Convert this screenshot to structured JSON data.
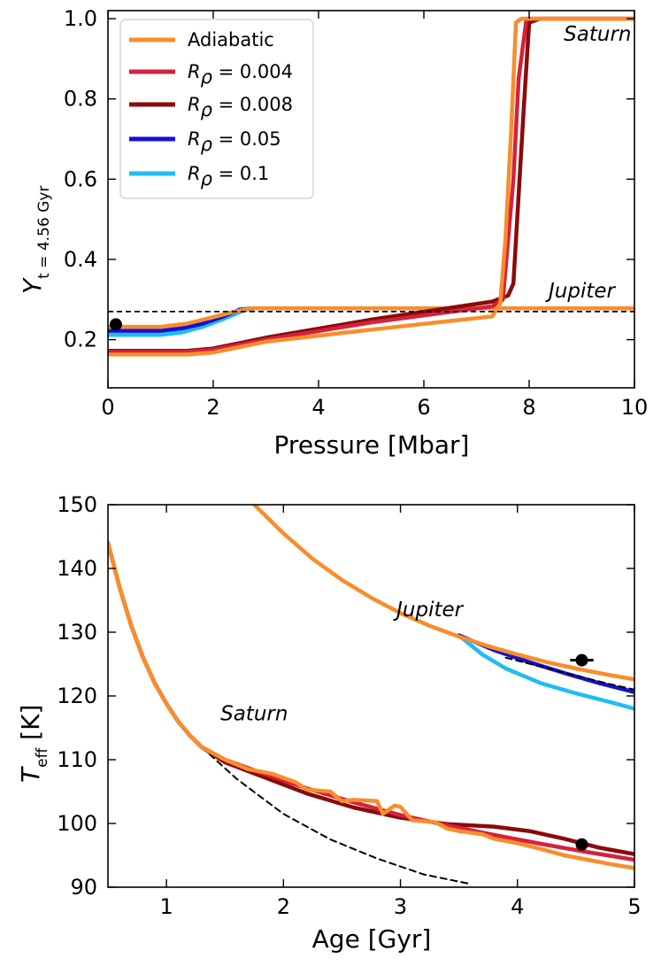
{
  "chart_data": [
    {
      "type": "line",
      "xlabel": "Pressure [Mbar]",
      "ylabel_symbol": "Y",
      "ylabel_subscript": "t = 4.56 Gyr",
      "xlim": [
        0,
        10
      ],
      "ylim": [
        0.08,
        1.02
      ],
      "xticks": [
        0,
        2,
        4,
        6,
        8,
        10
      ],
      "xtick_labels": [
        "0",
        "2",
        "4",
        "6",
        "8",
        "10"
      ],
      "yticks": [
        0.2,
        0.4,
        0.6,
        0.8,
        1.0
      ],
      "ytick_labels": [
        "0.2",
        "0.4",
        "0.6",
        "0.8",
        "1.0"
      ],
      "legend": {
        "position": "top-left",
        "entries": [
          {
            "label": "Adiabatic",
            "color": "#f98d2b",
            "math": false
          },
          {
            "label": "R",
            "sub": "ρ",
            "rest": " = 0.004",
            "color": "#d4213c",
            "math": true
          },
          {
            "label": "R",
            "sub": "ρ",
            "rest": " = 0.008",
            "color": "#8b0a0a",
            "math": true
          },
          {
            "label": "R",
            "sub": "ρ",
            "rest": " = 0.05",
            "color": "#1212d8",
            "math": true
          },
          {
            "label": "R",
            "sub": "ρ",
            "rest": " = 0.1",
            "color": "#1fbdf1",
            "math": true
          }
        ]
      },
      "annotations": [
        {
          "text": "Saturn",
          "x": 9.3,
          "y": 0.945
        },
        {
          "text": "Jupiter",
          "x": 9.0,
          "y": 0.305
        }
      ],
      "reference_line": {
        "y": 0.27,
        "style": "dashed",
        "color": "#000000"
      },
      "observation_points": [
        {
          "x": 0.15,
          "y": 0.238,
          "yerr": 0.005,
          "color": "#000000"
        }
      ],
      "series": [
        {
          "name": "Jupiter R_rho = 0.1",
          "color": "#1fbdf1",
          "x": [
            0,
            1.0,
            1.4,
            1.8,
            2.2,
            2.6,
            2.8,
            10
          ],
          "y": [
            0.212,
            0.212,
            0.218,
            0.232,
            0.252,
            0.274,
            0.278,
            0.278
          ]
        },
        {
          "name": "Jupiter R_rho = 0.05",
          "color": "#1212d8",
          "x": [
            0,
            1.0,
            1.4,
            1.8,
            2.2,
            2.5,
            2.7,
            10
          ],
          "y": [
            0.222,
            0.222,
            0.228,
            0.24,
            0.258,
            0.275,
            0.278,
            0.278
          ]
        },
        {
          "name": "Jupiter Adiabatic",
          "color": "#f98d2b",
          "x": [
            0,
            1.0,
            1.5,
            2.0,
            2.4,
            2.7,
            10
          ],
          "y": [
            0.232,
            0.232,
            0.24,
            0.256,
            0.27,
            0.278,
            0.278
          ]
        },
        {
          "name": "Saturn R_rho = 0.008",
          "color": "#8b0a0a",
          "x": [
            0,
            1.5,
            2.0,
            3.0,
            5.0,
            7.3,
            7.6,
            7.7,
            7.9,
            8.0,
            8.2,
            10
          ],
          "y": [
            0.172,
            0.172,
            0.178,
            0.205,
            0.25,
            0.295,
            0.31,
            0.34,
            0.78,
            0.99,
            1.0,
            1.0
          ]
        },
        {
          "name": "Saturn R_rho = 0.004",
          "color": "#d4213c",
          "x": [
            0,
            1.5,
            2.0,
            3.0,
            5.0,
            7.3,
            7.5,
            7.7,
            7.8,
            7.95,
            10
          ],
          "y": [
            0.17,
            0.17,
            0.175,
            0.2,
            0.243,
            0.283,
            0.3,
            0.6,
            0.85,
            1.0,
            1.0
          ]
        },
        {
          "name": "Saturn Adiabatic",
          "color": "#f98d2b",
          "x": [
            0,
            1.5,
            2.0,
            3.0,
            5.0,
            7.3,
            7.45,
            7.55,
            7.65,
            7.75,
            7.85,
            10
          ],
          "y": [
            0.163,
            0.163,
            0.168,
            0.195,
            0.225,
            0.258,
            0.29,
            0.45,
            0.7,
            0.99,
            1.0,
            1.0
          ]
        }
      ]
    },
    {
      "type": "line",
      "xlabel": "Age [Gyr]",
      "ylabel_symbol": "T",
      "ylabel_subscript": "eff",
      "ylabel_unit": " [K]",
      "xlim": [
        0.5,
        5
      ],
      "ylim": [
        90,
        150
      ],
      "xticks": [
        1,
        2,
        3,
        4,
        5
      ],
      "xtick_labels": [
        "1",
        "2",
        "3",
        "4",
        "5"
      ],
      "yticks": [
        90,
        100,
        110,
        120,
        130,
        140,
        150
      ],
      "ytick_labels": [
        "90",
        "100",
        "110",
        "120",
        "130",
        "140",
        "150"
      ],
      "annotations": [
        {
          "text": "Jupiter",
          "x": 3.25,
          "y": 132.5
        },
        {
          "text": "Saturn",
          "x": 1.75,
          "y": 116.2
        }
      ],
      "observation_points": [
        {
          "x": 4.55,
          "y": 125.6,
          "xerr": 0.1,
          "color": "#000000"
        },
        {
          "x": 4.55,
          "y": 96.7,
          "xerr": 0.05,
          "color": "#000000"
        }
      ],
      "series": [
        {
          "name": "Saturn dashed reference",
          "color": "#000000",
          "dashed": true,
          "x": [
            1.3,
            1.6,
            2.0,
            2.4,
            2.8,
            3.2,
            3.6
          ],
          "y": [
            112,
            107,
            101.5,
            97.5,
            94.5,
            92,
            90.5
          ]
        },
        {
          "name": "Jupiter R_rho = 0.1",
          "color": "#1fbdf1",
          "x": [
            3.5,
            3.7,
            3.9,
            4.2,
            4.5,
            4.8,
            5.0
          ],
          "y": [
            129.5,
            126.5,
            124.3,
            122.0,
            120.4,
            119.0,
            118.0
          ]
        },
        {
          "name": "Jupiter R_rho = 0.05",
          "color": "#1212d8",
          "x": [
            3.5,
            3.8,
            4.1,
            4.4,
            4.7,
            5.0
          ],
          "y": [
            129.5,
            127.2,
            125.3,
            123.6,
            122.0,
            120.6
          ]
        },
        {
          "name": "Jupiter dashed reference",
          "color": "#000000",
          "dashed": true,
          "x": [
            3.9,
            4.2,
            4.5,
            4.8,
            5.0
          ],
          "y": [
            126.0,
            124.6,
            123.2,
            121.8,
            121.0
          ]
        },
        {
          "name": "Jupiter Adiabatic",
          "color": "#f98d2b",
          "x": [
            1.75,
            2.0,
            2.25,
            2.5,
            2.75,
            3.0,
            3.25,
            3.5,
            3.75,
            4.0,
            4.25,
            4.5,
            4.75,
            5.0
          ],
          "y": [
            150,
            145.5,
            141.5,
            138.2,
            135.4,
            133.0,
            131.0,
            129.3,
            127.8,
            126.5,
            125.3,
            124.3,
            123.4,
            122.6
          ]
        },
        {
          "name": "Saturn R_rho = 0.008",
          "color": "#8b0a0a",
          "x": [
            0.5,
            0.6,
            0.7,
            0.8,
            0.9,
            1.0,
            1.1,
            1.2,
            1.3,
            1.5,
            1.8,
            2.2,
            2.6,
            3.0,
            3.4,
            3.8,
            4.1,
            4.4,
            4.7,
            5.0
          ],
          "y": [
            144,
            137,
            131,
            126,
            122,
            118.8,
            116,
            113.8,
            112,
            109.6,
            107.5,
            104.7,
            102.5,
            100.9,
            99.9,
            99.5,
            98.8,
            97.6,
            96.2,
            95.2
          ]
        },
        {
          "name": "Saturn R_rho = 0.004",
          "color": "#d4213c",
          "x": [
            0.5,
            0.6,
            0.7,
            0.8,
            0.9,
            1.0,
            1.1,
            1.2,
            1.3,
            1.5,
            1.8,
            2.2,
            2.6,
            3.0,
            3.4,
            3.8,
            4.2,
            4.6,
            5.0
          ],
          "y": [
            144,
            137,
            131,
            126,
            122,
            118.8,
            116,
            113.8,
            112,
            110,
            108,
            105.5,
            103.3,
            101.3,
            99.7,
            98.2,
            96.8,
            95.5,
            94.3
          ]
        },
        {
          "name": "Saturn Adiabatic",
          "color": "#f98d2b",
          "x": [
            0.5,
            0.6,
            0.7,
            0.8,
            0.9,
            1.0,
            1.1,
            1.2,
            1.3,
            1.5,
            1.7,
            1.9,
            2.1,
            2.2,
            2.4,
            2.5,
            2.6,
            2.8,
            2.85,
            2.95,
            3.0,
            3.1,
            3.3,
            3.4,
            3.5,
            3.7,
            3.8,
            4.0,
            4.2,
            4.4,
            4.6,
            4.8,
            5.0
          ],
          "y": [
            144,
            137,
            131,
            126,
            122,
            118.8,
            116,
            113.8,
            112,
            110,
            108.5,
            107.8,
            106.5,
            105.3,
            105.0,
            103.5,
            103.7,
            103.5,
            101.5,
            102.8,
            102.6,
            100.5,
            100.2,
            99.2,
            98.8,
            98.3,
            97.6,
            96.9,
            96.0,
            95.0,
            94.3,
            93.6,
            93.0
          ]
        }
      ]
    }
  ]
}
